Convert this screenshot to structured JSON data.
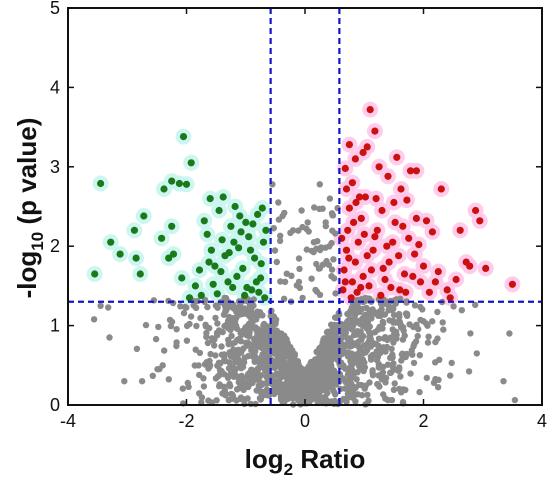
{
  "chart_data": {
    "type": "scatter",
    "title": "",
    "xlabel": {
      "prefix": "log",
      "subscript": "2",
      "suffix": " Ratio"
    },
    "ylabel": {
      "prefix": "-log",
      "subscript": "10",
      "suffix": " (p value)"
    },
    "xlim": [
      -4,
      4
    ],
    "ylim": [
      0,
      5
    ],
    "x_ticks": [
      "-4",
      "-2",
      "0",
      "2",
      "4"
    ],
    "y_ticks": [
      "0",
      "1",
      "2",
      "3",
      "4",
      "5"
    ],
    "grid": false,
    "legend": "none",
    "thresholds": {
      "x": [
        -0.58,
        0.58
      ],
      "y": 1.3,
      "style": "dashed",
      "color": "#1515c8"
    },
    "series": [
      {
        "key": "down",
        "color": "#1a7a1a",
        "highlight": "#c8f5f0",
        "points": [
          [
            -2.05,
            3.38
          ],
          [
            -2.25,
            2.82
          ],
          [
            -2.12,
            2.79
          ],
          [
            -2.0,
            2.78
          ],
          [
            -1.92,
            3.05
          ],
          [
            -2.38,
            2.72
          ],
          [
            -3.45,
            2.79
          ],
          [
            -3.55,
            1.65
          ],
          [
            -3.28,
            2.05
          ],
          [
            -3.12,
            1.9
          ],
          [
            -2.88,
            2.2
          ],
          [
            -2.72,
            2.38
          ],
          [
            -2.85,
            1.85
          ],
          [
            -2.78,
            1.65
          ],
          [
            -2.42,
            2.1
          ],
          [
            -2.3,
            1.85
          ],
          [
            -2.22,
            1.9
          ],
          [
            -2.25,
            2.25
          ],
          [
            -2.08,
            1.6
          ],
          [
            -1.95,
            1.35
          ],
          [
            -1.85,
            1.5
          ],
          [
            -1.78,
            1.7
          ],
          [
            -1.7,
            2.32
          ],
          [
            -1.65,
            2.15
          ],
          [
            -1.58,
            1.95
          ],
          [
            -1.52,
            1.75
          ],
          [
            -1.45,
            2.45
          ],
          [
            -1.4,
            2.08
          ],
          [
            -1.35,
            1.88
          ],
          [
            -1.3,
            1.55
          ],
          [
            -1.25,
            2.25
          ],
          [
            -1.18,
            2.5
          ],
          [
            -1.12,
            1.98
          ],
          [
            -1.05,
            1.72
          ],
          [
            -1.0,
            2.3
          ],
          [
            -0.95,
            2.12
          ],
          [
            -0.9,
            1.45
          ],
          [
            -0.85,
            1.85
          ],
          [
            -0.8,
            2.4
          ],
          [
            -0.75,
            1.6
          ],
          [
            -0.7,
            2.05
          ],
          [
            -0.68,
            1.35
          ],
          [
            -1.6,
            2.6
          ],
          [
            -1.48,
            1.4
          ],
          [
            -1.38,
            2.62
          ],
          [
            -1.22,
            1.48
          ],
          [
            -1.1,
            2.38
          ],
          [
            -1.02,
            1.38
          ],
          [
            -0.92,
            1.95
          ],
          [
            -0.82,
            1.55
          ],
          [
            -0.74,
            1.78
          ],
          [
            -0.66,
            2.2
          ],
          [
            -1.55,
            1.52
          ],
          [
            -1.42,
            1.68
          ],
          [
            -1.28,
            1.92
          ],
          [
            -1.15,
            1.62
          ],
          [
            -1.08,
            2.18
          ],
          [
            -0.98,
            1.48
          ],
          [
            -0.88,
            2.28
          ],
          [
            -0.78,
            1.42
          ],
          [
            -1.75,
            1.38
          ],
          [
            -1.62,
            1.8
          ],
          [
            -1.2,
            2.05
          ],
          [
            -0.72,
            2.48
          ]
        ]
      },
      {
        "key": "up",
        "color": "#cc1010",
        "highlight": "#ffc6ea",
        "points": [
          [
            1.1,
            3.72
          ],
          [
            1.18,
            3.45
          ],
          [
            1.05,
            3.25
          ],
          [
            0.98,
            3.18
          ],
          [
            0.85,
            3.1
          ],
          [
            0.75,
            3.28
          ],
          [
            0.68,
            2.98
          ],
          [
            0.8,
            2.8
          ],
          [
            0.92,
            2.62
          ],
          [
            1.25,
            3.0
          ],
          [
            1.4,
            2.88
          ],
          [
            1.55,
            3.12
          ],
          [
            1.78,
            2.95
          ],
          [
            1.88,
            2.95
          ],
          [
            1.62,
            2.72
          ],
          [
            2.3,
            2.72
          ],
          [
            2.05,
            2.32
          ],
          [
            2.15,
            2.18
          ],
          [
            2.62,
            2.2
          ],
          [
            2.88,
            2.45
          ],
          [
            2.95,
            2.32
          ],
          [
            2.72,
            1.8
          ],
          [
            2.78,
            1.75
          ],
          [
            3.05,
            1.72
          ],
          [
            3.5,
            1.52
          ],
          [
            2.55,
            1.58
          ],
          [
            2.4,
            1.45
          ],
          [
            2.2,
            1.55
          ],
          [
            2.0,
            1.75
          ],
          [
            1.95,
            1.55
          ],
          [
            1.85,
            1.9
          ],
          [
            1.75,
            2.1
          ],
          [
            1.68,
            1.65
          ],
          [
            1.6,
            1.45
          ],
          [
            1.52,
            2.3
          ],
          [
            1.48,
            2.05
          ],
          [
            1.42,
            1.8
          ],
          [
            1.35,
            1.58
          ],
          [
            1.3,
            2.45
          ],
          [
            1.22,
            2.2
          ],
          [
            1.15,
            1.95
          ],
          [
            1.12,
            1.7
          ],
          [
            1.08,
            1.5
          ],
          [
            1.02,
            2.62
          ],
          [
            0.95,
            2.35
          ],
          [
            0.9,
            2.05
          ],
          [
            0.85,
            1.8
          ],
          [
            0.8,
            1.55
          ],
          [
            0.75,
            2.48
          ],
          [
            0.72,
            2.2
          ],
          [
            0.7,
            1.95
          ],
          [
            0.66,
            1.7
          ],
          [
            0.64,
            1.45
          ],
          [
            0.62,
            2.1
          ],
          [
            0.78,
            1.35
          ],
          [
            0.88,
            1.42
          ],
          [
            0.98,
            1.62
          ],
          [
            1.05,
            1.88
          ],
          [
            1.18,
            2.12
          ],
          [
            1.28,
            1.38
          ],
          [
            1.38,
            2.0
          ],
          [
            1.45,
            1.48
          ],
          [
            1.58,
            1.88
          ],
          [
            1.7,
            1.42
          ],
          [
            1.82,
            1.62
          ],
          [
            1.92,
            2.02
          ],
          [
            2.1,
            1.42
          ],
          [
            2.25,
            1.68
          ],
          [
            0.7,
            2.72
          ],
          [
            0.82,
            2.3
          ],
          [
            1.0,
            2.15
          ],
          [
            1.2,
            2.6
          ],
          [
            1.5,
            2.55
          ],
          [
            1.65,
            2.25
          ],
          [
            0.68,
            1.55
          ],
          [
            0.74,
            1.85
          ],
          [
            0.86,
            2.55
          ],
          [
            0.94,
            1.48
          ],
          [
            1.32,
            1.72
          ],
          [
            1.88,
            2.35
          ],
          [
            2.45,
            1.35
          ],
          [
            1.72,
            2.58
          ]
        ]
      },
      {
        "key": "not-significant",
        "color": "#8a8a8a",
        "generated": "dense gray cloud of non-significant points, y mostly below 1.3 and |x| below about 0.6",
        "points": [
          [
            -0.55,
            2.78
          ],
          [
            -0.45,
            2.55
          ],
          [
            -0.35,
            2.42
          ],
          [
            0.35,
            2.3
          ],
          [
            0.25,
            2.78
          ],
          [
            0.42,
            2.6
          ],
          [
            0.55,
            2.48
          ],
          [
            -0.2,
            2.2
          ],
          [
            0.15,
            2.05
          ],
          [
            -3.45,
            1.25
          ],
          [
            -3.3,
            0.85
          ],
          [
            3.45,
            0.9
          ],
          [
            3.35,
            0.3
          ],
          [
            -3.05,
            0.3
          ],
          [
            -2.75,
            0.3
          ],
          [
            2.9,
            0.65
          ]
        ]
      }
    ]
  }
}
